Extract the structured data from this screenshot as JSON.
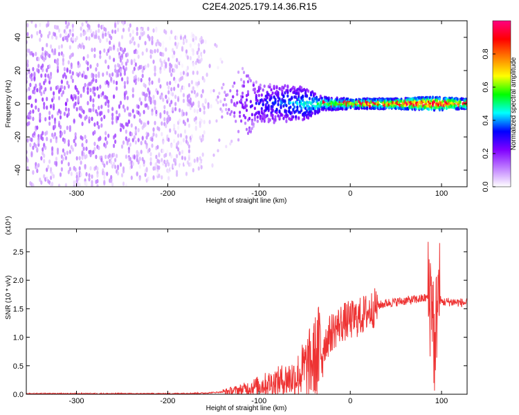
{
  "figure_title": "C2E4.2025.179.14.36.R15",
  "chart_data": [
    {
      "type": "heatmap",
      "title": "C2E4.2025.179.14.36.R15",
      "xlabel": "Height of straight line (km)",
      "ylabel": "Frequency (Hz)",
      "xlim": [
        -355,
        128
      ],
      "ylim": [
        -50,
        50
      ],
      "xticks": [
        -300,
        -200,
        -100,
        0,
        100
      ],
      "yticks": [
        -40,
        -20,
        0,
        20,
        40
      ],
      "colorbar": {
        "label": "Normalized spectral amplitude",
        "range": [
          0,
          1
        ],
        "ticks": [
          0.0,
          0.2,
          0.4,
          0.6,
          0.8
        ],
        "colormap": [
          "#ffffff",
          "#c080ff",
          "#8000ff",
          "#0000ff",
          "#00ffff",
          "#00ff00",
          "#ffff00",
          "#ff8000",
          "#ff0000",
          "#ff0080"
        ]
      },
      "description_points": [
        {
          "x": -355,
          "spread": 50,
          "amplitude": 0.15
        },
        {
          "x": -250,
          "spread": 50,
          "amplitude": 0.15
        },
        {
          "x": -200,
          "spread": 45,
          "amplitude": 0.08
        },
        {
          "x": -150,
          "spread": 40,
          "amplitude": 0.05
        },
        {
          "x": -100,
          "spread": 12,
          "amplitude": 0.3
        },
        {
          "x": -50,
          "spread": 10,
          "amplitude": 0.45
        },
        {
          "x": -30,
          "spread": 4,
          "amplitude": 0.55
        },
        {
          "x": 0,
          "spread": 3,
          "amplitude": 0.65
        },
        {
          "x": 50,
          "spread": 3,
          "amplitude": 0.75
        },
        {
          "x": 90,
          "spread": 4,
          "amplitude": 0.85
        },
        {
          "x": 128,
          "spread": 3,
          "amplitude": 0.7
        }
      ]
    },
    {
      "type": "line",
      "xlabel": "Height of straight line (km)",
      "ylabel": "SNR (10 * v/v)",
      "y_multiplier": "(x10⁴)",
      "xlim": [
        -355,
        128
      ],
      "ylim": [
        0,
        2.9
      ],
      "xticks": [
        -300,
        -200,
        -100,
        0,
        100
      ],
      "yticks": [
        0.0,
        0.5,
        1.0,
        1.5,
        2.0,
        2.5
      ],
      "color": "#ee3333",
      "series": [
        {
          "x": [
            -355,
            -300,
            -250,
            -200,
            -160,
            -140,
            -120,
            -100,
            -80,
            -60,
            -50,
            -40,
            -30,
            -20,
            -10,
            0,
            10,
            20,
            30,
            40,
            50,
            60,
            70,
            80,
            85,
            90,
            93,
            95,
            97,
            100,
            110,
            128
          ],
          "y": [
            0.01,
            0.01,
            0.01,
            0.01,
            0.02,
            0.04,
            0.08,
            0.15,
            0.22,
            0.3,
            0.45,
            0.6,
            0.85,
            1.1,
            1.25,
            1.3,
            1.35,
            1.45,
            1.55,
            1.6,
            1.62,
            1.64,
            1.66,
            1.68,
            1.7,
            1.75,
            0.3,
            1.8,
            1.7,
            1.62,
            1.62,
            1.6
          ]
        }
      ]
    }
  ]
}
